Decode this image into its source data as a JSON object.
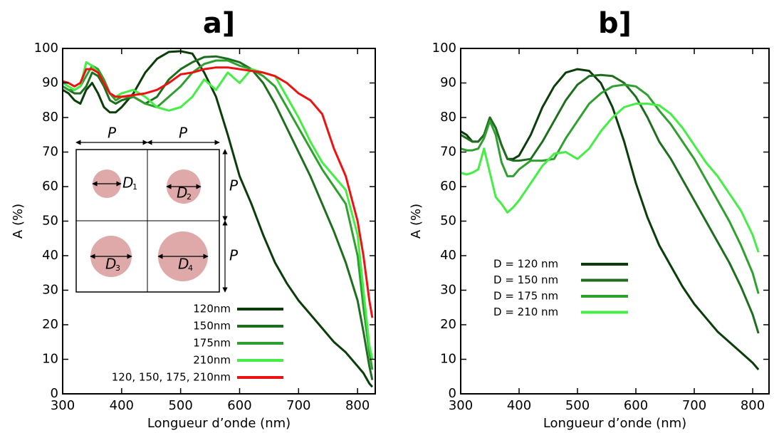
{
  "chart_data": [
    {
      "type": "line",
      "title": "a]",
      "x_label": "Longueur d’onde (nm)",
      "y_label": "A (%)",
      "xlim": [
        300,
        830
      ],
      "ylim": [
        0,
        100
      ],
      "xticks": [
        300,
        400,
        500,
        600,
        700,
        800
      ],
      "yticks": [
        0,
        10,
        20,
        30,
        40,
        50,
        60,
        70,
        80,
        90,
        100
      ],
      "legend": "lower right",
      "x": [
        300,
        310,
        320,
        330,
        340,
        350,
        360,
        370,
        380,
        390,
        400,
        420,
        440,
        460,
        480,
        500,
        520,
        540,
        560,
        580,
        600,
        620,
        640,
        660,
        680,
        700,
        720,
        740,
        760,
        780,
        800,
        810,
        820,
        825
      ],
      "series": [
        {
          "name": "120nm",
          "color": "#0b3d0b",
          "values": [
            88,
            87,
            85,
            84,
            88,
            90,
            87,
            83,
            81.5,
            81.5,
            83,
            87,
            93,
            97,
            99,
            99.2,
            98.5,
            93,
            86,
            75,
            63,
            55,
            46,
            38,
            32,
            27,
            23,
            19,
            15,
            12,
            8,
            6,
            3,
            2
          ]
        },
        {
          "name": "150nm",
          "color": "#1f6e1f",
          "values": [
            89,
            88,
            87,
            87,
            89,
            93,
            92,
            89,
            85,
            84,
            85,
            86,
            84,
            86,
            91,
            94,
            96,
            97.5,
            97.7,
            97,
            96,
            94,
            90,
            84,
            77,
            70,
            63,
            55,
            47,
            38,
            27,
            18,
            8,
            4
          ]
        },
        {
          "name": "175nm",
          "color": "#2fa02f",
          "values": [
            89,
            88,
            88,
            89,
            92,
            95,
            94,
            91,
            87,
            85,
            86,
            86,
            84,
            83,
            86,
            89,
            93,
            95.5,
            96.5,
            96.5,
            95,
            94,
            92,
            89,
            83,
            77,
            71,
            65,
            60,
            55,
            40,
            25,
            12,
            7
          ]
        },
        {
          "name": "210nm",
          "color": "#44ee44",
          "values": [
            90,
            89,
            88,
            89,
            96,
            95,
            93,
            90,
            87,
            86,
            87,
            88,
            86,
            83,
            82,
            83,
            86,
            91,
            88,
            93,
            90,
            94,
            93,
            92,
            86,
            80,
            73,
            67,
            63,
            59,
            46,
            30,
            14,
            10
          ]
        },
        {
          "name": "120, 150, 175, 210nm",
          "color": "#ee1111",
          "values": [
            90.5,
            90,
            89,
            90,
            94,
            94,
            93,
            90,
            87,
            86,
            86,
            86.5,
            87,
            88,
            90,
            92.5,
            93,
            94,
            94.5,
            94.5,
            94,
            93.5,
            93,
            92,
            90,
            87,
            85,
            81,
            71,
            63,
            50,
            40,
            27,
            22
          ]
        }
      ],
      "inset": {
        "period_label": "P",
        "diameter_symbol": "D",
        "diameter_indices": [
          "1",
          "2",
          "3",
          "4"
        ]
      }
    },
    {
      "type": "line",
      "title": "b]",
      "x_label": "Longueur d’onde (nm)",
      "y_label": "A (%)",
      "xlim": [
        300,
        828
      ],
      "ylim": [
        0,
        100
      ],
      "xticks": [
        300,
        400,
        500,
        600,
        700,
        800
      ],
      "yticks": [
        0,
        10,
        20,
        30,
        40,
        50,
        60,
        70,
        80,
        90,
        100
      ],
      "legend": "center left",
      "x": [
        300,
        310,
        320,
        330,
        340,
        350,
        360,
        370,
        380,
        390,
        400,
        420,
        440,
        460,
        480,
        500,
        520,
        540,
        560,
        580,
        600,
        620,
        640,
        660,
        680,
        700,
        720,
        740,
        760,
        780,
        800,
        810
      ],
      "series": [
        {
          "name": "D = 120 nm",
          "color": "#0b3d0b",
          "values": [
            76,
            75,
            73,
            73,
            75,
            80,
            77,
            72,
            68,
            68,
            69,
            75,
            83,
            89,
            93,
            94,
            93.5,
            90,
            83,
            73,
            61,
            51,
            43,
            37,
            31,
            26,
            22,
            18,
            15,
            12,
            9,
            7
          ]
        },
        {
          "name": "D = 150 nm",
          "color": "#1f6e1f",
          "values": [
            75,
            74,
            73,
            73,
            75,
            80,
            77,
            72,
            68,
            67.5,
            67.5,
            68,
            73,
            79,
            85,
            89.5,
            92,
            92.3,
            92,
            90,
            86,
            80,
            73,
            68,
            62,
            56,
            50,
            44,
            38,
            31,
            23,
            17.5
          ]
        },
        {
          "name": "D = 175 nm",
          "color": "#2fa02f",
          "values": [
            71,
            70.5,
            70.5,
            71,
            74,
            79,
            75,
            67,
            63,
            63,
            65,
            67.5,
            67.5,
            68,
            74,
            79,
            84,
            87,
            89,
            89.5,
            89,
            86.5,
            82,
            78,
            73,
            68,
            62,
            56,
            50,
            43,
            35,
            29
          ]
        },
        {
          "name": "D = 210 nm",
          "color": "#44ee44",
          "values": [
            64,
            63.5,
            64,
            65,
            71,
            64,
            57,
            55,
            52.5,
            54,
            56,
            61,
            66,
            69.5,
            70,
            68,
            71,
            76,
            80,
            83,
            84,
            84,
            83.5,
            81,
            77,
            72,
            67,
            63,
            58,
            53,
            46,
            41
          ]
        }
      ]
    }
  ]
}
